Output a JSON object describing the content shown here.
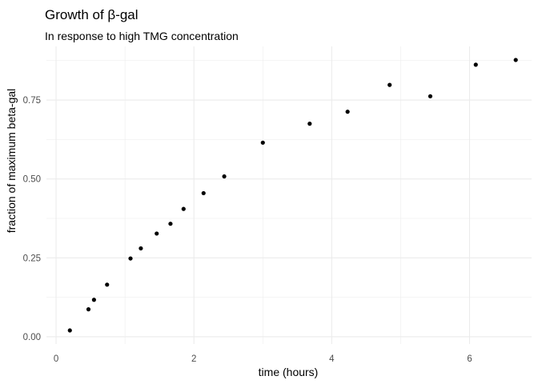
{
  "chart_data": {
    "type": "scatter",
    "title": "Growth of  β-gal",
    "subtitle": "In response to high TMG concentration",
    "xlabel": "time (hours)",
    "ylabel": "fraction of maximum beta-gal",
    "xlim": [
      -0.14,
      6.9
    ],
    "ylim": [
      -0.023,
      0.92
    ],
    "x_ticks": [
      0,
      2,
      4,
      6
    ],
    "x_tick_labels": [
      "0",
      "2",
      "4",
      "6"
    ],
    "y_ticks": [
      0,
      0.25,
      0.5,
      0.75
    ],
    "y_tick_labels": [
      "0.00",
      "0.25",
      "0.50",
      "0.75"
    ],
    "grid": true,
    "legend": "none",
    "points": [
      {
        "x": 0.2,
        "y": 0.02
      },
      {
        "x": 0.47,
        "y": 0.087
      },
      {
        "x": 0.55,
        "y": 0.117
      },
      {
        "x": 0.74,
        "y": 0.165
      },
      {
        "x": 1.08,
        "y": 0.248
      },
      {
        "x": 1.23,
        "y": 0.28
      },
      {
        "x": 1.46,
        "y": 0.327
      },
      {
        "x": 1.66,
        "y": 0.358
      },
      {
        "x": 1.85,
        "y": 0.405
      },
      {
        "x": 2.14,
        "y": 0.455
      },
      {
        "x": 2.44,
        "y": 0.508
      },
      {
        "x": 3.0,
        "y": 0.615
      },
      {
        "x": 3.68,
        "y": 0.675
      },
      {
        "x": 4.23,
        "y": 0.713
      },
      {
        "x": 4.84,
        "y": 0.798
      },
      {
        "x": 5.43,
        "y": 0.762
      },
      {
        "x": 6.09,
        "y": 0.862
      },
      {
        "x": 6.67,
        "y": 0.877
      }
    ]
  }
}
